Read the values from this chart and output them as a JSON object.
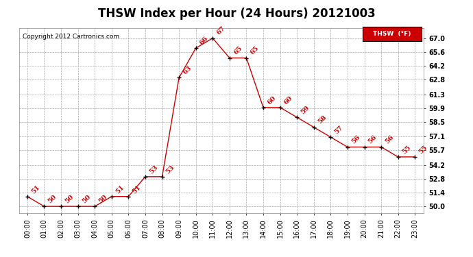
{
  "title": "THSW Index per Hour (24 Hours) 20121003",
  "copyright": "Copyright 2012 Cartronics.com",
  "legend_label": "THSW  (°F)",
  "hours": [
    0,
    1,
    2,
    3,
    4,
    5,
    6,
    7,
    8,
    9,
    10,
    11,
    12,
    13,
    14,
    15,
    16,
    17,
    18,
    19,
    20,
    21,
    22,
    23
  ],
  "values": [
    51,
    50,
    50,
    50,
    50,
    51,
    51,
    53,
    53,
    63,
    66,
    67,
    65,
    65,
    60,
    60,
    59,
    58,
    57,
    56,
    56,
    56,
    55,
    55
  ],
  "ylim_min": 49.3,
  "ylim_max": 68.0,
  "yticks": [
    50.0,
    51.4,
    52.8,
    54.2,
    55.7,
    57.1,
    58.5,
    59.9,
    61.3,
    62.8,
    64.2,
    65.6,
    67.0
  ],
  "line_color": "#cc0000",
  "marker_color": "black",
  "label_color": "#cc0000",
  "grid_color": "#aaaaaa",
  "bg_color": "#ffffff",
  "title_fontsize": 12,
  "label_fontsize": 7,
  "tick_fontsize": 7,
  "copyright_fontsize": 6.5
}
